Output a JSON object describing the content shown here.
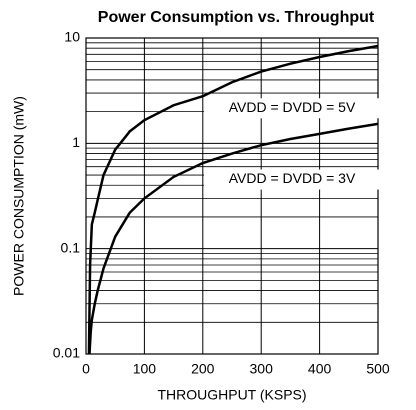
{
  "chart_data": {
    "type": "line",
    "title": "Power Consumption vs. Throughput",
    "xlabel": "THROUGHPUT (KSPS)",
    "ylabel": "POWER CONSUMPTION (mW)",
    "series": [
      {
        "name": "AVDD = DVDD = 5V",
        "color": "#000000",
        "x": [
          5,
          7,
          10,
          15,
          20,
          30,
          50,
          75,
          100,
          150,
          200,
          250,
          300,
          350,
          400,
          450,
          500
        ],
        "values": [
          0.01,
          0.07,
          0.17,
          0.22,
          0.29,
          0.5,
          0.87,
          1.3,
          1.66,
          2.3,
          2.8,
          3.8,
          4.8,
          5.7,
          6.6,
          7.5,
          8.4
        ]
      },
      {
        "name": "AVDD = DVDD = 3V",
        "color": "#000000",
        "x": [
          6,
          8,
          10,
          15,
          20,
          30,
          50,
          75,
          100,
          150,
          200,
          250,
          300,
          350,
          400,
          450,
          500
        ],
        "values": [
          0.01,
          0.016,
          0.021,
          0.03,
          0.04,
          0.065,
          0.13,
          0.22,
          0.3,
          0.48,
          0.65,
          0.8,
          0.96,
          1.1,
          1.23,
          1.38,
          1.53
        ]
      }
    ],
    "xlim": [
      0,
      500
    ],
    "xticks": [
      0,
      100,
      200,
      300,
      400,
      500
    ],
    "ylim": [
      0.01,
      10
    ],
    "yticks": [
      0.01,
      0.1,
      1,
      10
    ],
    "log_y": true,
    "grid": true,
    "minor_grid": true
  }
}
